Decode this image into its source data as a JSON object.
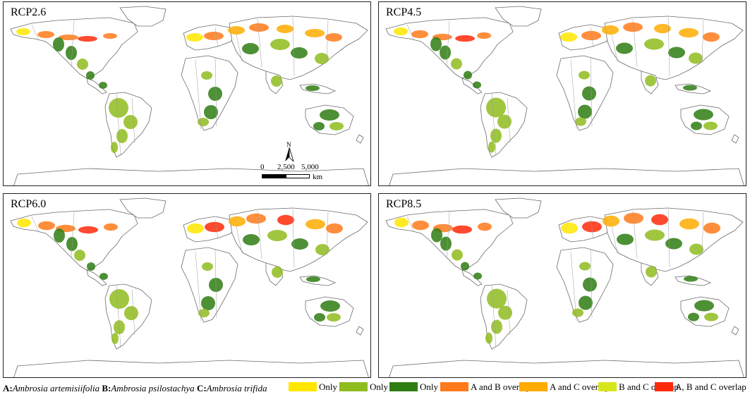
{
  "panels": [
    {
      "label": "RCP2.6",
      "has_scale": true
    },
    {
      "label": "RCP4.5",
      "has_scale": false
    },
    {
      "label": "RCP6.0",
      "has_scale": false
    },
    {
      "label": "RCP8.5",
      "has_scale": false
    }
  ],
  "scale_bar": {
    "north_label": "N",
    "ticks": [
      "0",
      "2,500",
      "5,000"
    ],
    "unit": "km"
  },
  "legend": {
    "species": [
      {
        "key": "A:",
        "name": "Ambrosia artemisiifolia"
      },
      {
        "key": "B:",
        "name": "Ambrosia psilostachya"
      },
      {
        "key": "C:",
        "name": "Ambrosia trifida"
      }
    ],
    "classes": [
      {
        "label": "Only A",
        "color": "#ffe600"
      },
      {
        "label": "Only B",
        "color": "#8fbc1e"
      },
      {
        "label": "Only C",
        "color": "#2e7d12"
      },
      {
        "label": "A and B overlap",
        "color": "#ff7a1a"
      },
      {
        "label": "A and C overlap",
        "color": "#ffab00"
      },
      {
        "label": "B and C overlap",
        "color": "#d6e61a"
      },
      {
        "label": "A, B and C overlap",
        "color": "#ff2a0a"
      }
    ]
  }
}
